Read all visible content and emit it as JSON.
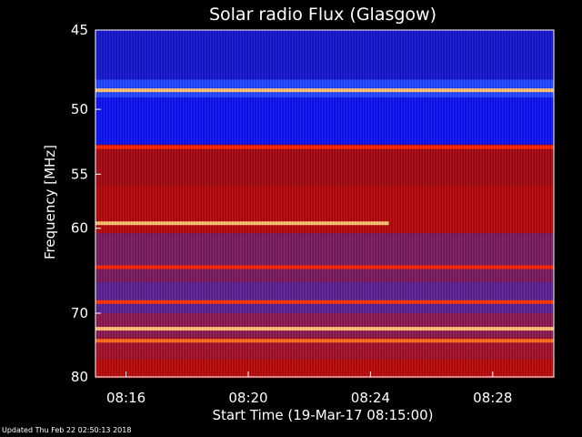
{
  "chart_data": {
    "type": "heatmap",
    "title": "Solar radio Flux (Glasgow)",
    "xlabel": "Start Time (19-Mar-17 08:15:00)",
    "ylabel": "Frequency [MHz]",
    "x_ticks": [
      "08:16",
      "08:20",
      "08:24",
      "08:28"
    ],
    "x_tick_minutes": [
      1,
      5,
      9,
      13
    ],
    "xlim_minutes": [
      0,
      15
    ],
    "y_ticks": [
      45,
      50,
      55,
      60,
      70,
      80
    ],
    "ylim": [
      45,
      80
    ],
    "colormap": [
      "#000000",
      "#1a1aff",
      "#7a2ea0",
      "#c00000",
      "#ff3300",
      "#ffd060"
    ],
    "bands": [
      {
        "freq": [
          44.8,
          48.0
        ],
        "color": "#1515cc"
      },
      {
        "freq": [
          48.0,
          49.2
        ],
        "color": "#2244ff"
      },
      {
        "freq": [
          49.2,
          52.6
        ],
        "color": "#0c12f0"
      },
      {
        "freq": [
          52.6,
          56.0
        ],
        "color": "#a40812"
      },
      {
        "freq": [
          56.0,
          60.5
        ],
        "color": "#b2080a"
      },
      {
        "freq": [
          60.5,
          66.0
        ],
        "color": "#7a1a60"
      },
      {
        "freq": [
          66.0,
          70.0
        ],
        "color": "#5a2090"
      },
      {
        "freq": [
          70.0,
          73.5
        ],
        "color": "#8a1850"
      },
      {
        "freq": [
          73.5,
          77.0
        ],
        "color": "#a0102a"
      },
      {
        "freq": [
          77.0,
          80.2
        ],
        "color": "#b80a0a"
      }
    ],
    "interference_lines": [
      {
        "freq": 48.7,
        "color": "#ffc070",
        "start_min": 0,
        "end_min": 15
      },
      {
        "freq": 52.8,
        "color": "#ff2200",
        "start_min": 0,
        "end_min": 15
      },
      {
        "freq": 59.5,
        "color": "#ffc070",
        "start_min": 0,
        "end_min": 9.6
      },
      {
        "freq": 64.2,
        "color": "#ff2200",
        "start_min": 0,
        "end_min": 15
      },
      {
        "freq": 68.5,
        "color": "#ff3300",
        "start_min": 0,
        "end_min": 15
      },
      {
        "freq": 72.2,
        "color": "#ffc070",
        "start_min": 0,
        "end_min": 15
      },
      {
        "freq": 74.0,
        "color": "#ff6a20",
        "start_min": 0,
        "end_min": 15
      }
    ]
  },
  "footer": {
    "updated": "Updated Thu Feb 22 02:50:13 2018"
  }
}
